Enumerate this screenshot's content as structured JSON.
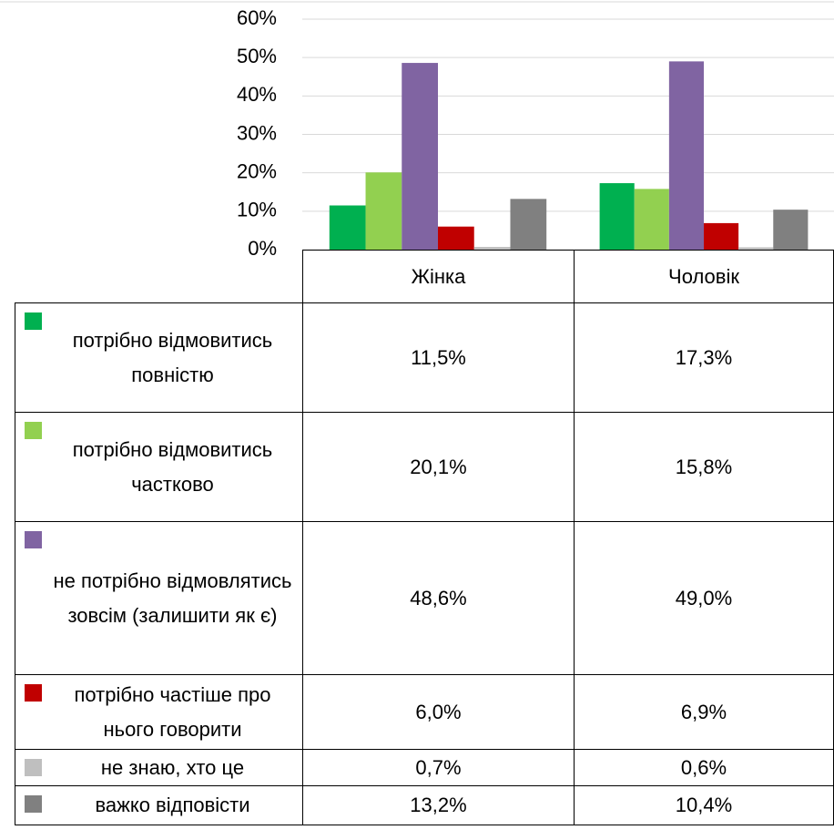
{
  "chart_data": {
    "type": "bar",
    "categories": [
      "Жінка",
      "Чоловік"
    ],
    "series": [
      {
        "name": "потрібно відмовитись повністю",
        "color": "#00b050",
        "values": [
          11.5,
          17.3
        ],
        "value_labels": [
          "11,5%",
          "17,3%"
        ]
      },
      {
        "name": "потрібно відмовитись частково",
        "color": "#92d050",
        "values": [
          20.1,
          15.8
        ],
        "value_labels": [
          "20,1%",
          "15,8%"
        ]
      },
      {
        "name": "не потрібно відмовлятись зовсім (залишити як є)",
        "color": "#8064a2",
        "values": [
          48.6,
          49.0
        ],
        "value_labels": [
          "48,6%",
          "49,0%"
        ]
      },
      {
        "name": "потрібно частіше про нього говорити",
        "color": "#c00000",
        "values": [
          6.0,
          6.9
        ],
        "value_labels": [
          "6,0%",
          "6,9%"
        ]
      },
      {
        "name": "не знаю, хто це",
        "color": "#bfbfbf",
        "values": [
          0.7,
          0.6
        ],
        "value_labels": [
          "0,7%",
          "0,6%"
        ]
      },
      {
        "name": "важко відповісти",
        "color": "#808080",
        "values": [
          13.2,
          10.4
        ],
        "value_labels": [
          "13,2%",
          "10,4%"
        ]
      }
    ],
    "ylim": [
      0,
      60
    ],
    "yticks": [
      {
        "value": 0,
        "label": "0%"
      },
      {
        "value": 10,
        "label": "10%"
      },
      {
        "value": 20,
        "label": "20%"
      },
      {
        "value": 30,
        "label": "30%"
      },
      {
        "value": 40,
        "label": "40%"
      },
      {
        "value": 50,
        "label": "50%"
      },
      {
        "value": 60,
        "label": "60%"
      }
    ],
    "grid": true,
    "legend": "table"
  }
}
